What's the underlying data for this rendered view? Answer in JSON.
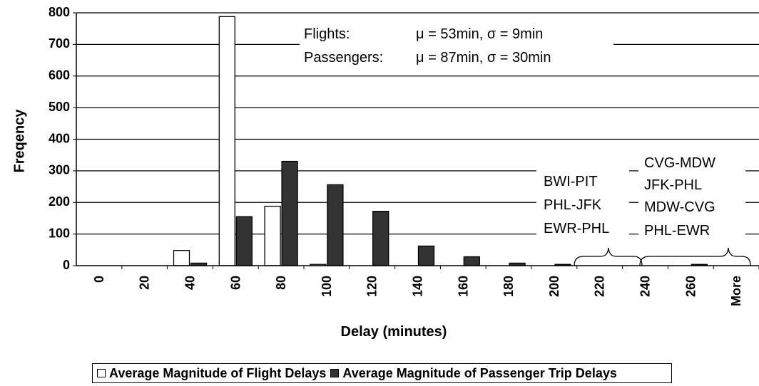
{
  "chart_data": {
    "type": "bar",
    "xlabel": "Delay (minutes)",
    "ylabel": "Freqency",
    "ylim": [
      0,
      800
    ],
    "yticks": [
      0,
      100,
      200,
      300,
      400,
      500,
      600,
      700,
      800
    ],
    "categories": [
      "0",
      "20",
      "40",
      "60",
      "80",
      "100",
      "120",
      "140",
      "160",
      "180",
      "200",
      "220",
      "240",
      "260",
      "More"
    ],
    "series": [
      {
        "name": "Average Magnitude of Flight Delays",
        "color": "#ffffff",
        "values": [
          0,
          0,
          48,
          788,
          188,
          4,
          0,
          0,
          0,
          0,
          0,
          0,
          0,
          0,
          0
        ]
      },
      {
        "name": "Average Magnitude of Passenger Trip Delays",
        "color": "#333333",
        "values": [
          0,
          0,
          8,
          155,
          330,
          256,
          172,
          62,
          28,
          8,
          4,
          0,
          0,
          4,
          0
        ]
      }
    ],
    "grid": true,
    "legend_position": "bottom",
    "annotations": {
      "stats": [
        {
          "label": "Flights:",
          "value": "μ = 53min, σ = 9min"
        },
        {
          "label": "Passengers:",
          "value": "μ = 87min, σ = 30min"
        }
      ],
      "group_200_220": [
        "BWI-PIT",
        "PHL-JFK",
        "EWR-PHL"
      ],
      "group_240_260": [
        "CVG-MDW",
        "JFK-PHL",
        "MDW-CVG",
        "PHL-EWR"
      ]
    }
  }
}
